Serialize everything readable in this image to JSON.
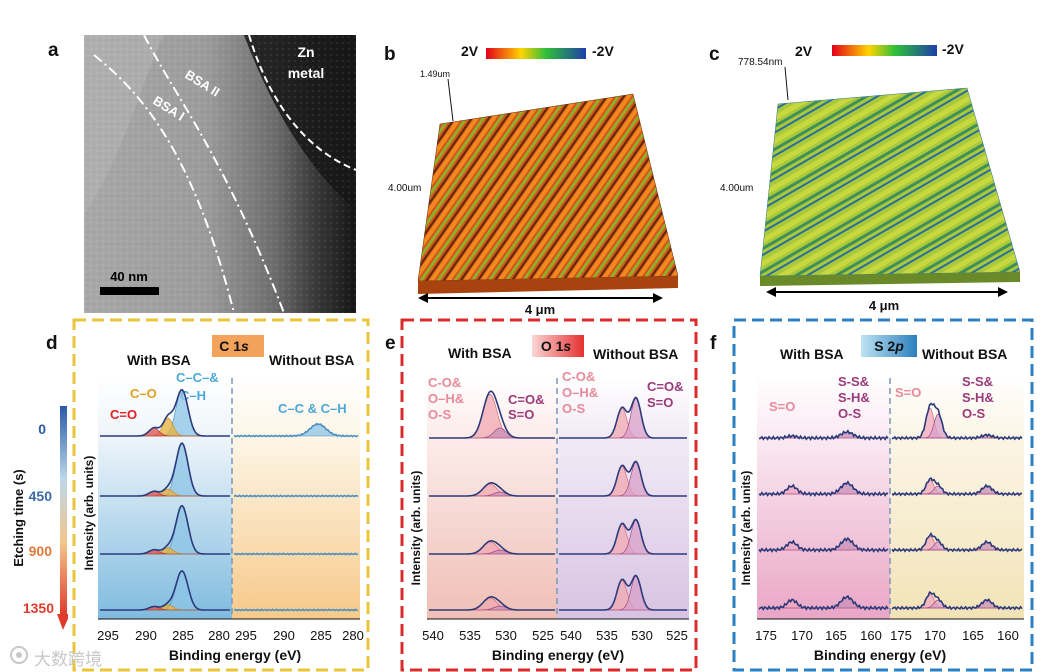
{
  "panels": {
    "a": {
      "letter": "a",
      "zn_line1": "Zn",
      "zn_line2": "metal",
      "bsa2": "BSA II",
      "bsa1": "BSA I",
      "scale": "40 nm"
    },
    "b": {
      "letter": "b",
      "cb_left": "2V",
      "cb_right": "-2V",
      "height": "1.49um",
      "side": "4.00um",
      "width": "4 μm"
    },
    "c": {
      "letter": "c",
      "cb_left": "2V",
      "cb_right": "-2V",
      "height": "778.54nm",
      "side": "4.00um",
      "width": "4 μm"
    },
    "d": {
      "letter": "d",
      "badge": "C 1",
      "badge_sub": "s",
      "with": "With BSA",
      "without": "Without BSA",
      "ann_co": "C=O",
      "ann_c_o": "C–O",
      "ann_cc1": "C–C–&",
      "ann_cc2": "C–H",
      "ann_without": "C–C & C–H",
      "ticks_left": [
        "295",
        "290",
        "285",
        "280"
      ],
      "ticks_right": [
        "295",
        "290",
        "285",
        "280"
      ]
    },
    "e": {
      "letter": "e",
      "badge": "O 1",
      "badge_sub": "s",
      "with": "With BSA",
      "without": "Without BSA",
      "ann1": [
        "C-O&",
        "O–H&",
        "O-S"
      ],
      "ann2": [
        "C=O&",
        "S=O"
      ],
      "ann3": [
        "C-O&",
        "O–H&",
        "O-S"
      ],
      "ann4": [
        "C=O&",
        "S=O"
      ],
      "ticks_left": [
        "540",
        "535",
        "530",
        "525"
      ],
      "ticks_right": [
        "540",
        "535",
        "530",
        "525"
      ]
    },
    "f": {
      "letter": "f",
      "badge": "S 2",
      "badge_sub": "p",
      "with": "With BSA",
      "without": "Without BSA",
      "ann_so1": "S=O",
      "ann_ss1": [
        "S-S&",
        "S-H&",
        "O-S"
      ],
      "ann_so2": "S=O",
      "ann_ss2": [
        "S-S&",
        "S-H&",
        "O-S"
      ],
      "ticks_left": [
        "175",
        "170",
        "165",
        "160"
      ],
      "ticks_right": [
        "175",
        "170",
        "165",
        "160"
      ]
    }
  },
  "axes": {
    "intensity": "Intensity (arb. units)",
    "binding": "Binding energy (eV)",
    "etching": "Etching time (s)",
    "etch_ticks": [
      "0",
      "450",
      "900",
      "1350"
    ]
  },
  "watermark": "大数跨境",
  "colors": {
    "yellow_border": "#e8c53a",
    "red_border": "#d92b2b",
    "blue_border": "#2c7fc1",
    "fit_line": "#2b3a7a"
  }
}
